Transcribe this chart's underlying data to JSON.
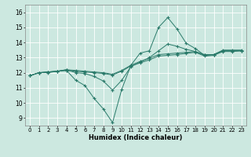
{
  "xlabel": "Humidex (Indice chaleur)",
  "bg_color": "#cce8e0",
  "line_color": "#2a7a6a",
  "grid_color": "#ffffff",
  "xlim": [
    -0.5,
    23.5
  ],
  "ylim": [
    8.5,
    16.5
  ],
  "xticks": [
    0,
    1,
    2,
    3,
    4,
    5,
    6,
    7,
    8,
    9,
    10,
    11,
    12,
    13,
    14,
    15,
    16,
    17,
    18,
    19,
    20,
    21,
    22,
    23
  ],
  "yticks": [
    9,
    10,
    11,
    12,
    13,
    14,
    15,
    16
  ],
  "series": [
    [
      11.8,
      12.0,
      12.0,
      12.1,
      12.15,
      11.5,
      11.15,
      10.3,
      9.6,
      8.7,
      10.9,
      12.5,
      13.3,
      13.45,
      15.0,
      15.65,
      14.9,
      13.95,
      13.6,
      13.15,
      13.2,
      13.5,
      13.5,
      13.5
    ],
    [
      11.8,
      12.0,
      12.05,
      12.1,
      12.2,
      12.15,
      12.1,
      12.05,
      12.0,
      11.9,
      12.15,
      12.5,
      12.75,
      12.95,
      13.2,
      13.25,
      13.3,
      13.35,
      13.4,
      13.15,
      13.2,
      13.45,
      13.45,
      13.45
    ],
    [
      11.8,
      12.0,
      12.05,
      12.1,
      12.15,
      12.1,
      12.05,
      12.0,
      11.95,
      11.85,
      12.1,
      12.45,
      12.65,
      12.85,
      13.1,
      13.15,
      13.2,
      13.28,
      13.35,
      13.1,
      13.15,
      13.4,
      13.4,
      13.45
    ],
    [
      11.8,
      12.0,
      12.05,
      12.1,
      12.2,
      12.0,
      11.95,
      11.75,
      11.45,
      10.85,
      11.5,
      12.4,
      12.7,
      13.0,
      13.45,
      13.9,
      13.75,
      13.55,
      13.4,
      13.2,
      13.2,
      13.45,
      13.45,
      13.45
    ]
  ]
}
